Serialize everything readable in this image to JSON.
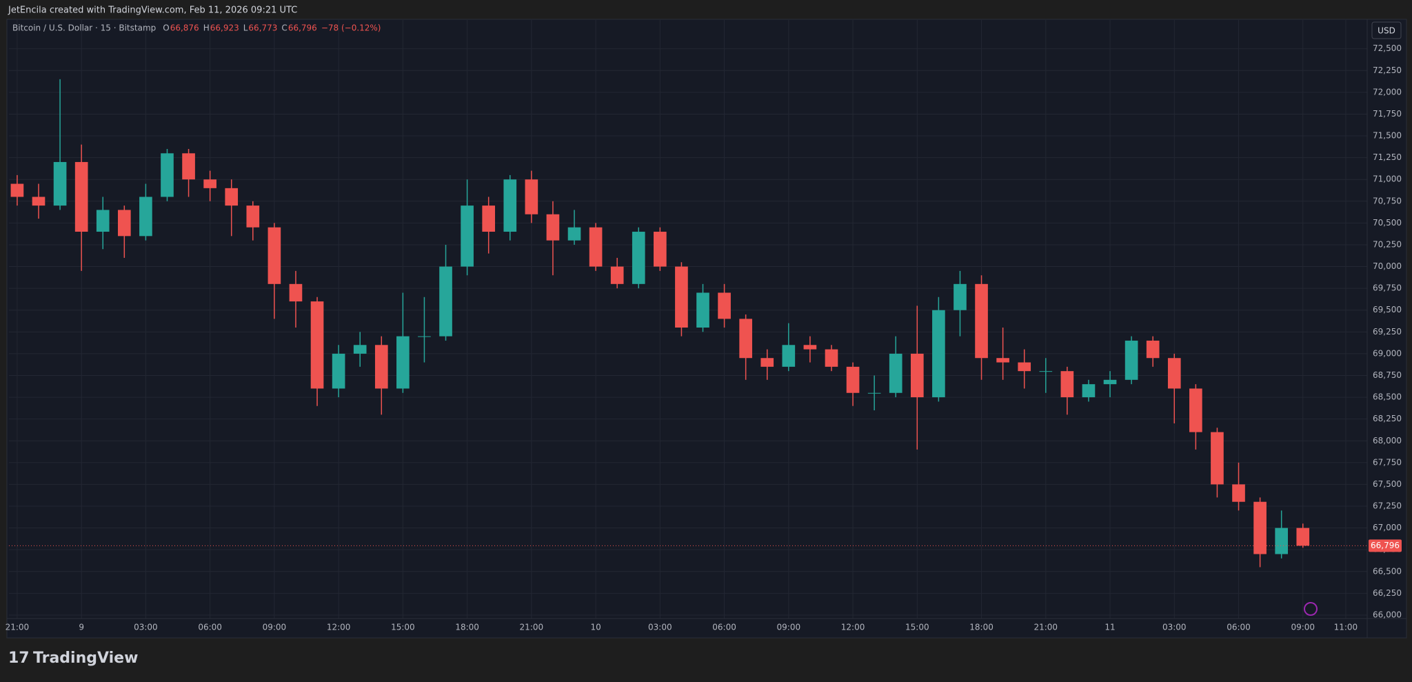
{
  "header": {
    "attribution": "JetEncila created with TradingView.com, Feb 11, 2026 09:21 UTC"
  },
  "legend": {
    "symbol": "Bitcoin / U.S. Dollar · 15 · Bitstamp",
    "o_key": "O",
    "o": "66,876",
    "h_key": "H",
    "h": "66,923",
    "l_key": "L",
    "l": "66,773",
    "c_key": "C",
    "c": "66,796",
    "change": "−78 (−0.12%)"
  },
  "currency": "USD",
  "brand": "TradingView",
  "chart_data": {
    "type": "candlestick",
    "x": [
      "Feb 8 21:00",
      "Feb 8 22:00",
      "Feb 8 23:00",
      "Feb 9 00:00",
      "Feb 9 01:00",
      "Feb 9 02:00",
      "Feb 9 03:00",
      "Feb 9 04:00",
      "Feb 9 05:00",
      "Feb 9 06:00",
      "Feb 9 07:00",
      "Feb 9 08:00",
      "Feb 9 09:00",
      "Feb 9 10:00",
      "Feb 9 11:00",
      "Feb 9 12:00",
      "Feb 9 13:00",
      "Feb 9 14:00",
      "Feb 9 15:00",
      "Feb 9 16:00",
      "Feb 9 17:00",
      "Feb 9 18:00",
      "Feb 9 19:00",
      "Feb 9 20:00",
      "Feb 9 21:00",
      "Feb 9 22:00",
      "Feb 9 23:00",
      "Feb 10 00:00",
      "Feb 10 01:00",
      "Feb 10 02:00",
      "Feb 10 03:00",
      "Feb 10 04:00",
      "Feb 10 05:00",
      "Feb 10 06:00",
      "Feb 10 07:00",
      "Feb 10 08:00",
      "Feb 10 09:00",
      "Feb 10 10:00",
      "Feb 10 11:00",
      "Feb 10 12:00",
      "Feb 10 13:00",
      "Feb 10 14:00",
      "Feb 10 15:00",
      "Feb 10 16:00",
      "Feb 10 17:00",
      "Feb 10 18:00",
      "Feb 10 19:00",
      "Feb 10 20:00",
      "Feb 10 21:00",
      "Feb 10 22:00",
      "Feb 10 23:00",
      "Feb 11 00:00",
      "Feb 11 01:00",
      "Feb 11 02:00",
      "Feb 11 03:00",
      "Feb 11 04:00",
      "Feb 11 05:00",
      "Feb 11 06:00",
      "Feb 11 07:00",
      "Feb 11 08:00",
      "Feb 11 09:00"
    ],
    "open": [
      70950,
      70800,
      70700,
      71200,
      70400,
      70650,
      70350,
      70800,
      71300,
      71000,
      70900,
      70700,
      70450,
      69800,
      69600,
      68600,
      69000,
      69100,
      68600,
      69200,
      69200,
      70000,
      70700,
      70400,
      71000,
      70600,
      70300,
      70450,
      70000,
      69800,
      70400,
      70000,
      69300,
      69700,
      69400,
      68950,
      68850,
      69100,
      69050,
      68850,
      68550,
      68550,
      69000,
      68500,
      69500,
      69800,
      68950,
      68900,
      68800,
      68800,
      68500,
      68650,
      68700,
      69150,
      68950,
      68600,
      68100,
      67500,
      67300,
      66700,
      67000
    ],
    "high": [
      71050,
      70950,
      72150,
      71400,
      70800,
      70700,
      70950,
      71350,
      71350,
      71100,
      71000,
      70750,
      70500,
      69950,
      69650,
      69100,
      69250,
      69200,
      69700,
      69650,
      70250,
      71000,
      70800,
      71050,
      71100,
      70750,
      70650,
      70500,
      70100,
      70450,
      70450,
      70050,
      69800,
      69800,
      69450,
      69050,
      69350,
      69200,
      69100,
      68900,
      68750,
      69200,
      69550,
      69650,
      69950,
      69900,
      69300,
      69050,
      68950,
      68850,
      68700,
      68800,
      69200,
      69200,
      69000,
      68650,
      68150,
      67750,
      67350,
      67200,
      67050
    ],
    "low": [
      70700,
      70550,
      70650,
      69950,
      70200,
      70100,
      70300,
      70750,
      70800,
      70750,
      70350,
      70300,
      69400,
      69300,
      68400,
      68500,
      68850,
      68300,
      68550,
      68900,
      69150,
      69900,
      70150,
      70300,
      70500,
      69900,
      70250,
      69950,
      69750,
      69750,
      69950,
      69200,
      69250,
      69300,
      68700,
      68700,
      68800,
      68900,
      68800,
      68400,
      68350,
      68500,
      67900,
      68450,
      69200,
      68700,
      68700,
      68600,
      68550,
      68300,
      68450,
      68500,
      68650,
      68850,
      68200,
      67900,
      67350,
      67200,
      66550,
      66650,
      66773
    ],
    "close": [
      70800,
      70700,
      71200,
      70400,
      70650,
      70350,
      70800,
      71300,
      71000,
      70900,
      70700,
      70450,
      69800,
      69600,
      68600,
      69000,
      69100,
      68600,
      69200,
      69200,
      70000,
      70700,
      70400,
      71000,
      70600,
      70300,
      70450,
      70000,
      69800,
      70400,
      70000,
      69300,
      69700,
      69400,
      68950,
      68850,
      69100,
      69050,
      68850,
      68550,
      68550,
      69000,
      68500,
      69500,
      69800,
      68950,
      68900,
      68800,
      68800,
      68500,
      68650,
      68700,
      69150,
      68950,
      68600,
      68100,
      67500,
      67300,
      66700,
      67000,
      66796
    ],
    "up_color": "#26a69a",
    "down_color": "#ef5350",
    "xlim": [
      "Feb 8 20:37",
      "Feb 11 12:00"
    ],
    "xticks": [
      {
        "value": "Feb 8 21:00",
        "label": "21:00"
      },
      {
        "value": "Feb 9 00:00",
        "label": "9"
      },
      {
        "value": "Feb 9 03:00",
        "label": "03:00"
      },
      {
        "value": "Feb 9 06:00",
        "label": "06:00"
      },
      {
        "value": "Feb 9 09:00",
        "label": "09:00"
      },
      {
        "value": "Feb 9 12:00",
        "label": "12:00"
      },
      {
        "value": "Feb 9 15:00",
        "label": "15:00"
      },
      {
        "value": "Feb 9 18:00",
        "label": "18:00"
      },
      {
        "value": "Feb 9 21:00",
        "label": "21:00"
      },
      {
        "value": "Feb 10 00:00",
        "label": "10"
      },
      {
        "value": "Feb 10 03:00",
        "label": "03:00"
      },
      {
        "value": "Feb 10 06:00",
        "label": "06:00"
      },
      {
        "value": "Feb 10 09:00",
        "label": "09:00"
      },
      {
        "value": "Feb 10 12:00",
        "label": "12:00"
      },
      {
        "value": "Feb 10 15:00",
        "label": "15:00"
      },
      {
        "value": "Feb 10 18:00",
        "label": "18:00"
      },
      {
        "value": "Feb 10 21:00",
        "label": "21:00"
      },
      {
        "value": "Feb 11 00:00",
        "label": "11"
      },
      {
        "value": "Feb 11 03:00",
        "label": "03:00"
      },
      {
        "value": "Feb 11 06:00",
        "label": "06:00"
      },
      {
        "value": "Feb 11 09:00",
        "label": "09:00"
      },
      {
        "value": "Feb 11 11:00",
        "label": "11:00"
      }
    ],
    "ylim": [
      65960,
      72830
    ],
    "yticks": [
      {
        "value": 66000,
        "label": "66,000"
      },
      {
        "value": 66250,
        "label": "66,250"
      },
      {
        "value": 66500,
        "label": "66,500"
      },
      {
        "value": 66750,
        "label": "66,750"
      },
      {
        "value": 67000,
        "label": "67,000"
      },
      {
        "value": 67250,
        "label": "67,250"
      },
      {
        "value": 67500,
        "label": "67,500"
      },
      {
        "value": 67750,
        "label": "67,750"
      },
      {
        "value": 68000,
        "label": "68,000"
      },
      {
        "value": 68250,
        "label": "68,250"
      },
      {
        "value": 68500,
        "label": "68,500"
      },
      {
        "value": 68750,
        "label": "68,750"
      },
      {
        "value": 69000,
        "label": "69,000"
      },
      {
        "value": 69250,
        "label": "69,250"
      },
      {
        "value": 69500,
        "label": "69,500"
      },
      {
        "value": 69750,
        "label": "69,750"
      },
      {
        "value": 70000,
        "label": "70,000"
      },
      {
        "value": 70250,
        "label": "70,250"
      },
      {
        "value": 70500,
        "label": "70,500"
      },
      {
        "value": 70750,
        "label": "70,750"
      },
      {
        "value": 71000,
        "label": "71,000"
      },
      {
        "value": 71250,
        "label": "71,250"
      },
      {
        "value": 71500,
        "label": "71,500"
      },
      {
        "value": 71750,
        "label": "71,750"
      },
      {
        "value": 72000,
        "label": "72,000"
      },
      {
        "value": 72250,
        "label": "72,250"
      },
      {
        "value": 72500,
        "label": "72,500"
      }
    ],
    "last_price": {
      "value": 66796,
      "label": "66,796"
    },
    "grid": true
  }
}
